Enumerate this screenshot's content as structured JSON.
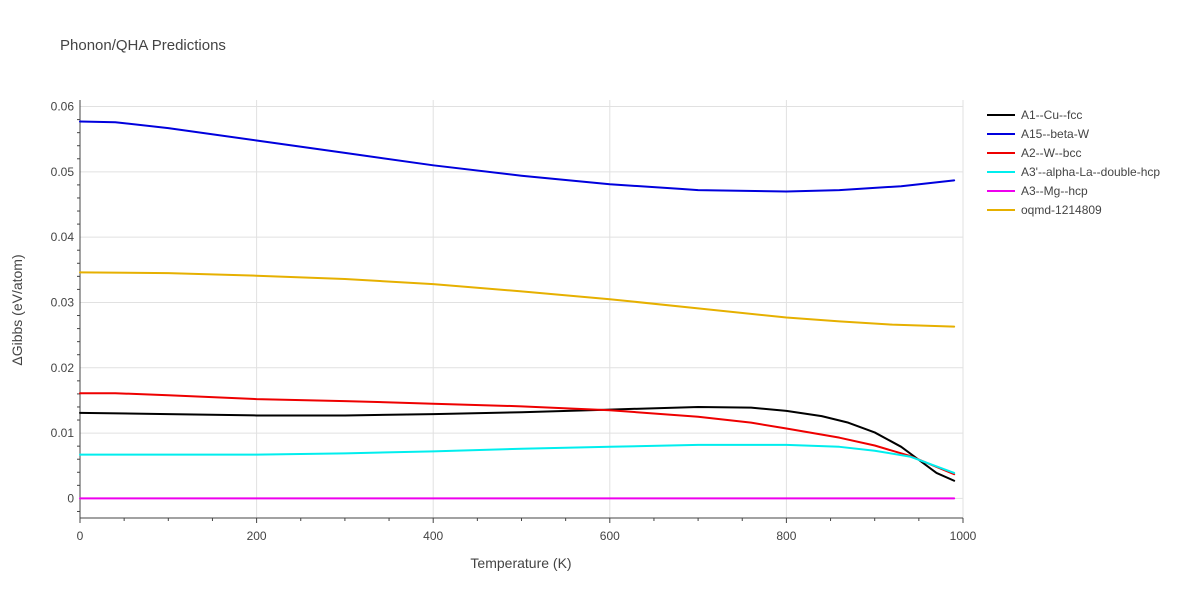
{
  "chart_data": {
    "type": "line",
    "title": "Phonon/QHA Predictions",
    "xlabel": "Temperature (K)",
    "ylabel": "ΔGibbs (eV/atom)",
    "xlim": [
      0,
      1000
    ],
    "ylim": [
      -0.003,
      0.061
    ],
    "xticks": [
      0,
      200,
      400,
      600,
      800,
      1000
    ],
    "yticks": [
      0,
      0.01,
      0.02,
      0.03,
      0.04,
      0.05,
      0.06
    ],
    "ytick_labels": [
      "0",
      "0.01",
      "0.02",
      "0.03",
      "0.04",
      "0.05",
      "0.06"
    ],
    "grid": true,
    "legend_position": "top-right",
    "series": [
      {
        "name": "A1--Cu--fcc",
        "color": "#000000",
        "x": [
          0,
          100,
          200,
          300,
          400,
          500,
          600,
          700,
          760,
          800,
          840,
          870,
          900,
          930,
          950,
          970,
          990
        ],
        "y": [
          0.0131,
          0.0129,
          0.0127,
          0.0127,
          0.0129,
          0.0132,
          0.0136,
          0.014,
          0.0139,
          0.0134,
          0.0126,
          0.0116,
          0.0101,
          0.0079,
          0.0059,
          0.0039,
          0.0027
        ]
      },
      {
        "name": "A15--beta-W",
        "color": "#0000dd",
        "x": [
          0,
          40,
          100,
          200,
          300,
          400,
          500,
          600,
          680,
          700,
          800,
          860,
          930,
          990
        ],
        "y": [
          0.0577,
          0.0576,
          0.0567,
          0.0548,
          0.0529,
          0.051,
          0.0494,
          0.0481,
          0.0474,
          0.0472,
          0.047,
          0.0472,
          0.0478,
          0.0487
        ]
      },
      {
        "name": "A2--W--bcc",
        "color": "#ee0000",
        "x": [
          0,
          40,
          100,
          200,
          300,
          400,
          500,
          600,
          700,
          760,
          800,
          860,
          900,
          940,
          990
        ],
        "y": [
          0.0161,
          0.0161,
          0.0158,
          0.0152,
          0.0149,
          0.0145,
          0.0141,
          0.0135,
          0.0125,
          0.0116,
          0.0107,
          0.0093,
          0.0081,
          0.0065,
          0.0037
        ]
      },
      {
        "name": "A3'--alpha-La--double-hcp",
        "color": "#00eeee",
        "x": [
          0,
          100,
          200,
          300,
          400,
          500,
          600,
          700,
          800,
          860,
          900,
          940,
          990
        ],
        "y": [
          0.0067,
          0.0067,
          0.0067,
          0.0069,
          0.0072,
          0.0076,
          0.0079,
          0.0082,
          0.0082,
          0.0079,
          0.0073,
          0.0064,
          0.0039
        ]
      },
      {
        "name": "A3--Mg--hcp",
        "color": "#ee00ee",
        "x": [
          0,
          990
        ],
        "y": [
          0,
          0
        ]
      },
      {
        "name": "oqmd-1214809",
        "color": "#e6b000",
        "x": [
          0,
          100,
          200,
          300,
          400,
          500,
          600,
          700,
          800,
          860,
          920,
          990
        ],
        "y": [
          0.0346,
          0.0345,
          0.0341,
          0.0336,
          0.0328,
          0.0317,
          0.0305,
          0.0291,
          0.0277,
          0.0271,
          0.0266,
          0.0263
        ]
      }
    ]
  }
}
